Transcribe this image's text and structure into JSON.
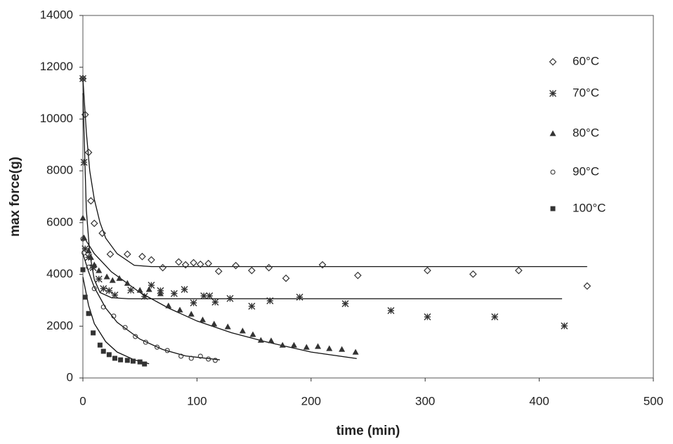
{
  "chart_data": {
    "type": "scatter",
    "xlabel": "time (min)",
    "ylabel": "max force(g)",
    "xlim": [
      0,
      500
    ],
    "xticks": [
      0,
      100,
      200,
      300,
      400,
      500
    ],
    "ylim": [
      0,
      14000
    ],
    "yticks": [
      0,
      2000,
      4000,
      6000,
      8000,
      10000,
      12000,
      14000
    ],
    "legend": "upper right",
    "series": [
      {
        "name": "60°C",
        "marker": "diamond",
        "color": "#333333",
        "x": [
          0,
          2,
          5,
          7,
          10,
          17,
          24,
          39,
          52,
          60,
          70,
          84,
          90,
          97,
          103,
          110,
          119,
          134,
          148,
          163,
          178,
          210,
          241,
          302,
          342,
          382,
          442
        ],
        "values": [
          11560,
          10170,
          8710,
          6840,
          5970,
          5590,
          4780,
          4780,
          4690,
          4560,
          4260,
          4480,
          4370,
          4450,
          4390,
          4420,
          4120,
          4340,
          4150,
          4260,
          3850,
          4370,
          3960,
          4150,
          4010,
          4150,
          3550
        ],
        "trendline": {
          "x": [
            0,
            3,
            6,
            10,
            15,
            20,
            30,
            45,
            60,
            442
          ],
          "y": [
            11560,
            9500,
            8000,
            6900,
            6000,
            5400,
            4800,
            4350,
            4300,
            4300
          ]
        }
      },
      {
        "name": "70°C",
        "marker": "asterisk",
        "color": "#333333",
        "x": [
          0,
          1,
          2,
          5,
          9,
          14,
          18,
          23,
          28,
          42,
          54,
          60,
          68,
          80,
          89,
          97,
          106,
          111,
          116,
          129,
          148,
          164,
          190,
          230,
          270,
          302,
          361,
          422
        ],
        "values": [
          11560,
          8330,
          4990,
          4660,
          4260,
          3820,
          3450,
          3370,
          3200,
          3390,
          3150,
          3580,
          3370,
          3260,
          3420,
          2900,
          3170,
          3170,
          2930,
          3070,
          2770,
          2980,
          3120,
          2870,
          2600,
          2360,
          2360,
          2010
        ],
        "trendline": {
          "x": [
            0,
            3,
            6,
            10,
            15,
            25,
            40,
            420
          ],
          "y": [
            11000,
            6500,
            4800,
            3800,
            3300,
            3100,
            3060,
            3060
          ]
        }
      },
      {
        "name": "80°C",
        "marker": "triangle",
        "color": "#333333",
        "x": [
          0,
          1,
          5,
          7,
          10,
          14,
          21,
          26,
          32,
          39,
          50,
          58,
          68,
          75,
          85,
          95,
          105,
          115,
          127,
          140,
          149,
          156,
          165,
          175,
          185,
          196,
          206,
          216,
          227,
          239
        ],
        "values": [
          6180,
          5420,
          4910,
          4660,
          4370,
          4150,
          3910,
          3770,
          3850,
          3660,
          3390,
          3420,
          3260,
          2790,
          2630,
          2470,
          2250,
          2090,
          1980,
          1820,
          1680,
          1460,
          1440,
          1270,
          1270,
          1190,
          1220,
          1140,
          1110,
          1000
        ],
        "trendline": {
          "x": [
            0,
            10,
            25,
            50,
            75,
            100,
            130,
            160,
            200,
            240
          ],
          "y": [
            5500,
            4800,
            4100,
            3300,
            2700,
            2200,
            1750,
            1400,
            1000,
            750
          ]
        }
      },
      {
        "name": "90°C",
        "marker": "circle",
        "color": "#333333",
        "x": [
          0,
          1,
          5,
          10,
          18,
          27,
          37,
          46,
          55,
          65,
          74,
          86,
          95,
          103,
          110,
          116
        ],
        "values": [
          5370,
          4830,
          4280,
          3450,
          2740,
          2390,
          1950,
          1600,
          1380,
          1190,
          1060,
          840,
          760,
          840,
          730,
          680
        ],
        "trendline": {
          "x": [
            0,
            5,
            10,
            20,
            30,
            50,
            70,
            90,
            120
          ],
          "y": [
            4800,
            4100,
            3500,
            2700,
            2150,
            1500,
            1100,
            850,
            700
          ]
        }
      },
      {
        "name": "100°C",
        "marker": "square",
        "color": "#333333",
        "x": [
          0,
          2,
          5,
          9,
          15,
          18,
          23,
          28,
          33,
          39,
          44,
          50,
          54
        ],
        "values": [
          4180,
          3120,
          2490,
          1740,
          1270,
          1030,
          900,
          760,
          700,
          680,
          650,
          620,
          540
        ],
        "trendline": {
          "x": [
            0,
            5,
            10,
            20,
            30,
            45,
            58
          ],
          "y": [
            3900,
            2800,
            2100,
            1400,
            1000,
            700,
            550
          ]
        }
      }
    ]
  }
}
